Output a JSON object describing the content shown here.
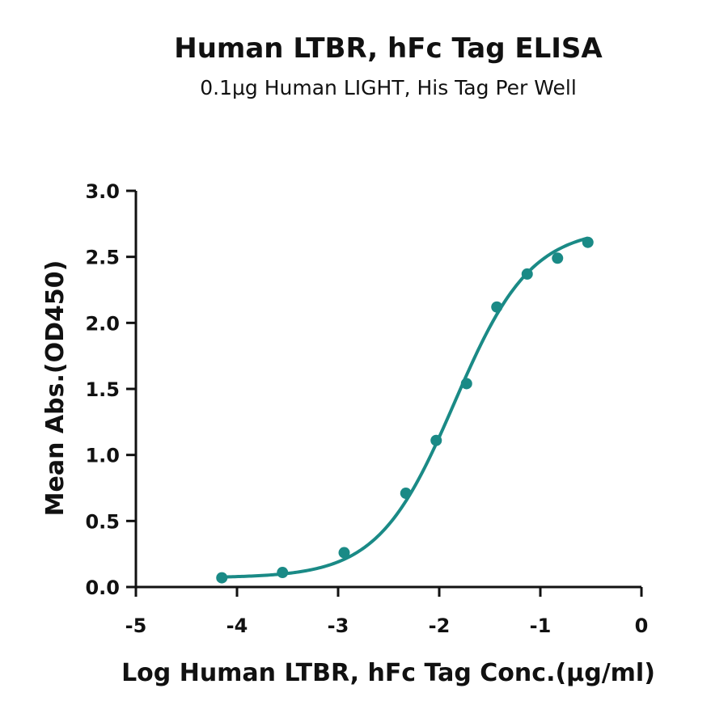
{
  "chart_data": {
    "type": "scatter",
    "title": "Human LTBR, hFc Tag ELISA",
    "subtitle": "0.1μg Human LIGHT, His Tag Per Well",
    "xlabel": "Log Human LTBR, hFc  Tag Conc.(μg/ml)",
    "ylabel": "Mean Abs.(OD450)",
    "xlim": [
      -5,
      0
    ],
    "ylim": [
      0,
      3.0
    ],
    "x_ticks": [
      "-5",
      "-4",
      "-3",
      "-2",
      "-1",
      "0"
    ],
    "y_ticks": [
      "0.0",
      "0.5",
      "1.0",
      "1.5",
      "2.0",
      "2.5",
      "3.0"
    ],
    "grid": false,
    "color": "#1a8a86",
    "series": [
      {
        "x": [
          -4.15,
          -3.55,
          -2.94,
          -2.33,
          -2.03,
          -1.73,
          -1.43,
          -1.13,
          -0.83,
          -0.53
        ],
        "y": [
          0.07,
          0.11,
          0.26,
          0.71,
          1.11,
          1.54,
          2.12,
          2.37,
          2.49,
          2.61
        ]
      }
    ],
    "fit_curve": {
      "type": "4PL",
      "bottom": 0.07,
      "top": 2.72,
      "log_ec50": -1.85,
      "hill_slope": 1.15
    }
  }
}
